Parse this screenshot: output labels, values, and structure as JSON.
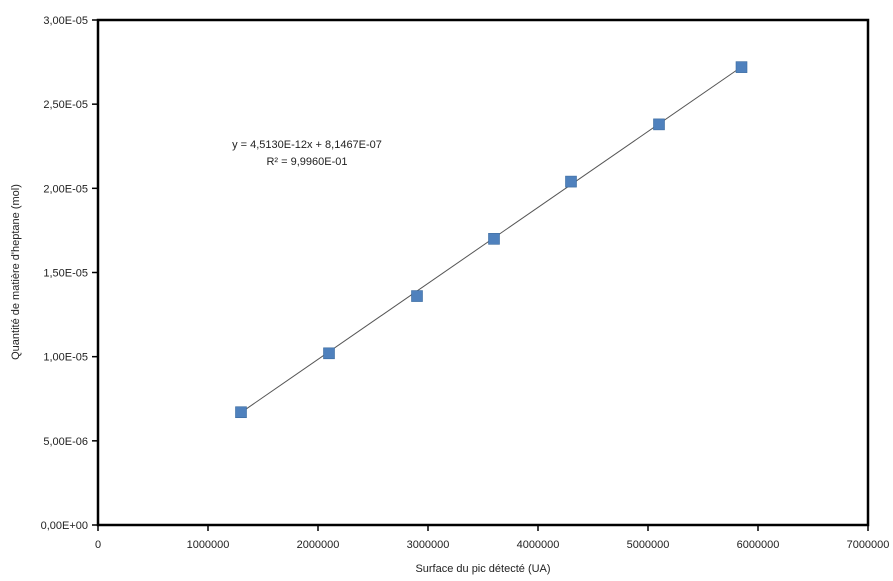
{
  "chart_data": {
    "type": "scatter",
    "title": "",
    "xlabel": "Surface du pic détecté (UA)",
    "ylabel": "Quantité de matière d'heptane (mol)",
    "xlim": [
      0,
      7000000
    ],
    "ylim": [
      0,
      3e-05
    ],
    "x_ticks": [
      "0",
      "1000000",
      "2000000",
      "3000000",
      "4000000",
      "5000000",
      "6000000",
      "7000000"
    ],
    "x_tick_values": [
      0,
      1000000,
      2000000,
      3000000,
      4000000,
      5000000,
      6000000,
      7000000
    ],
    "y_ticks": [
      "0,00E+00",
      "5,00E-06",
      "1,00E-05",
      "1,50E-05",
      "2,00E-05",
      "2,50E-05",
      "3,00E-05"
    ],
    "y_tick_values": [
      0,
      5e-06,
      1e-05,
      1.5e-05,
      2e-05,
      2.5e-05,
      3e-05
    ],
    "grid": false,
    "legend": "none",
    "marker_color": "#4f81bd",
    "line_color": "#555555",
    "series": [
      {
        "x": [
          1300000,
          2100000,
          2900000,
          3600000,
          4300000,
          5100000,
          5850000
        ],
        "y": [
          6.7e-06,
          1.02e-05,
          1.36e-05,
          1.7e-05,
          2.04e-05,
          2.38e-05,
          2.72e-05
        ]
      }
    ],
    "trendline": {
      "slope": 4.513e-12,
      "intercept": 8.1467e-07,
      "x_range": [
        1300000,
        5850000
      ]
    },
    "annotations": {
      "equation": "y = 4,5130E-12x + 8,1467E-07",
      "r_squared": "R² = 9,9960E-01"
    }
  }
}
